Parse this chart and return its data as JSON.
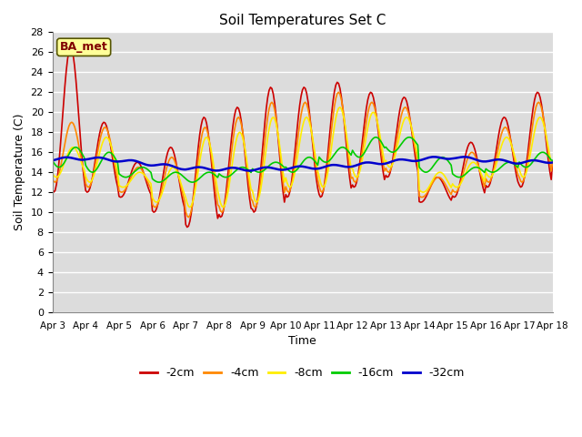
{
  "title": "Soil Temperatures Set C",
  "xlabel": "Time",
  "ylabel": "Soil Temperature (C)",
  "ylim": [
    0,
    28
  ],
  "yticks": [
    0,
    2,
    4,
    6,
    8,
    10,
    12,
    14,
    16,
    18,
    20,
    22,
    24,
    26,
    28
  ],
  "plot_bg_color": "#dcdcdc",
  "annotation_text": "BA_met",
  "annotation_bg": "#ffff99",
  "annotation_border": "#800000",
  "series": {
    "-2cm": {
      "color": "#cc0000",
      "lw": 1.2
    },
    "-4cm": {
      "color": "#ff8800",
      "lw": 1.2
    },
    "-8cm": {
      "color": "#ffee00",
      "lw": 1.2
    },
    "-16cm": {
      "color": "#00cc00",
      "lw": 1.2
    },
    "-32cm": {
      "color": "#0000cc",
      "lw": 1.8
    }
  },
  "x_tick_labels": [
    "Apr 3",
    "Apr 4",
    "Apr 5",
    "Apr 6",
    "Apr 7",
    "Apr 8",
    "Apr 9",
    "Apr 10",
    "Apr 11",
    "Apr 12",
    "Apr 13",
    "Apr 14",
    "Apr 15",
    "Apr 16",
    "Apr 17",
    "Apr 18"
  ]
}
